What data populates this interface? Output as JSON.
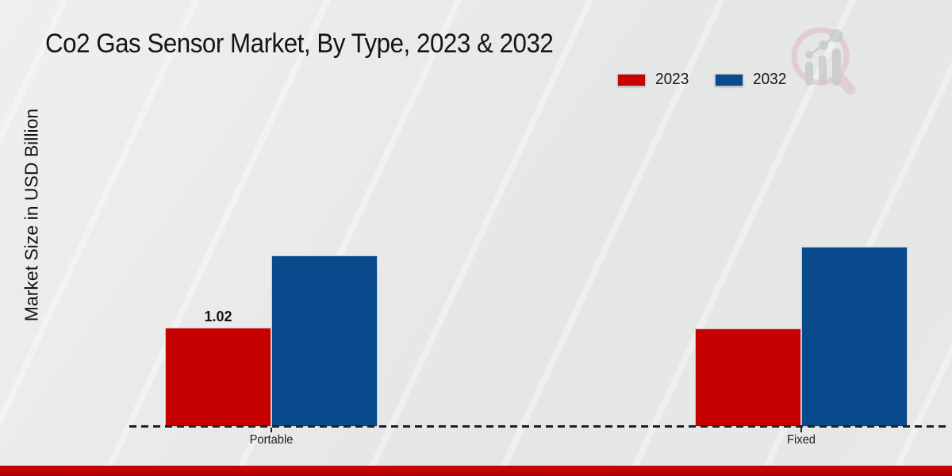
{
  "header": {
    "title": "Co2 Gas Sensor Market, By Type, 2023 & 2032",
    "logo_icon": "magnifier-bar-chart-logo"
  },
  "axes": {
    "y_label": "Market Size in USD Billion"
  },
  "legend": {
    "items": [
      {
        "label": "2023",
        "color": "#c60101"
      },
      {
        "label": "2032",
        "color": "#084a8c"
      }
    ]
  },
  "chart_data": {
    "type": "bar",
    "title": "Co2 Gas Sensor Market, By Type, 2023 & 2032",
    "xlabel": "",
    "ylabel": "Market Size in USD Billion",
    "categories": [
      "Portable",
      "Fixed"
    ],
    "series": [
      {
        "name": "2023",
        "color": "#c60101",
        "values": [
          1.02,
          1.01
        ]
      },
      {
        "name": "2032",
        "color": "#084a8c",
        "values": [
          1.76,
          1.85
        ]
      }
    ],
    "value_labels": [
      {
        "category": "Portable",
        "series": "2023",
        "text": "1.02"
      }
    ],
    "ylim": [
      0,
      2.2
    ],
    "grid": false,
    "legend_position": "top-right",
    "baseline_style": "dashed"
  },
  "footer": {
    "accent_color": "#c60101"
  }
}
